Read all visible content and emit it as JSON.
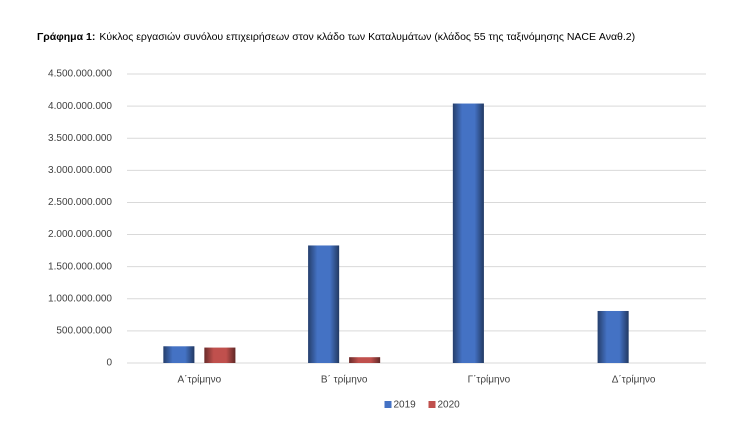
{
  "chart_data": {
    "type": "bar",
    "title_prefix": "Γράφημα 1:",
    "title": "Κύκλος εργασιών συνόλου επιχειρήσεων στον κλάδο των Καταλυμάτων (κλάδος 55 της ταξινόμησης NACE Αναθ.2)",
    "categories": [
      "Α΄τρίμηνο",
      "Β΄ τρίμηνο",
      "Γ΄τρίμηνο",
      "Δ΄τρίμηνο"
    ],
    "series": [
      {
        "name": "2019",
        "color": "#4472c4",
        "values": [
          260000000,
          1830000000,
          4040000000,
          810000000
        ]
      },
      {
        "name": "2020",
        "color": "#c0504d",
        "values": [
          240000000,
          90000000,
          null,
          null
        ]
      }
    ],
    "ylim": [
      0,
      4500000000
    ],
    "yticks": [
      0,
      {
        "value": 500000000,
        "label": "500.000.000"
      },
      {
        "value": 1000000000,
        "label": "1.000.000.000"
      },
      {
        "value": 1500000000,
        "label": "1.500.000.000"
      },
      {
        "value": 2000000000,
        "label": "2.000.000.000"
      },
      {
        "value": 2500000000,
        "label": "2.500.000.000"
      },
      {
        "value": 3000000000,
        "label": "3.000.000.000"
      },
      {
        "value": 3500000000,
        "label": "3.500.000.000"
      },
      {
        "value": 4000000000,
        "label": "4.000.000.000"
      },
      {
        "value": 4500000000,
        "label": "4.500.000.000"
      }
    ],
    "grid": true,
    "legend": "bottom"
  }
}
